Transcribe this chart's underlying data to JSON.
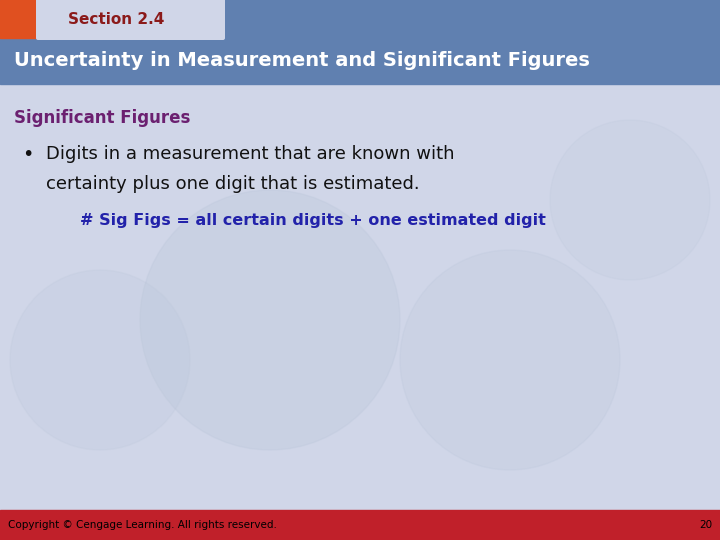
{
  "bg_color": "#d0d6e8",
  "top_bar_color": "#6080b0",
  "orange_rect_color": "#e05020",
  "section_label": "Section 2.4",
  "section_label_color": "#8b1a1a",
  "section_label_fontsize": 11,
  "title_text": "Uncertainty in Measurement and Significant Figures",
  "title_color": "#ffffff",
  "title_fontsize": 14,
  "subheading_text": "Significant Figures",
  "subheading_color": "#6b2070",
  "subheading_fontsize": 12,
  "bullet_text_line1": "Digits in a measurement that are known with",
  "bullet_text_line2": "certainty plus one digit that is estimated.",
  "bullet_color": "#111111",
  "bullet_fontsize": 13,
  "formula_text": "# Sig Figs = all certain digits + one estimated digit",
  "formula_color": "#2222aa",
  "formula_fontsize": 11.5,
  "footer_text": "Copyright © Cengage Learning. All rights reserved.",
  "footer_color": "#000000",
  "footer_fontsize": 7.5,
  "footer_bar_color": "#c0202a",
  "footer_number": "20",
  "curve_color": "#b8c4d8",
  "tab_color": "#d0d6e8"
}
